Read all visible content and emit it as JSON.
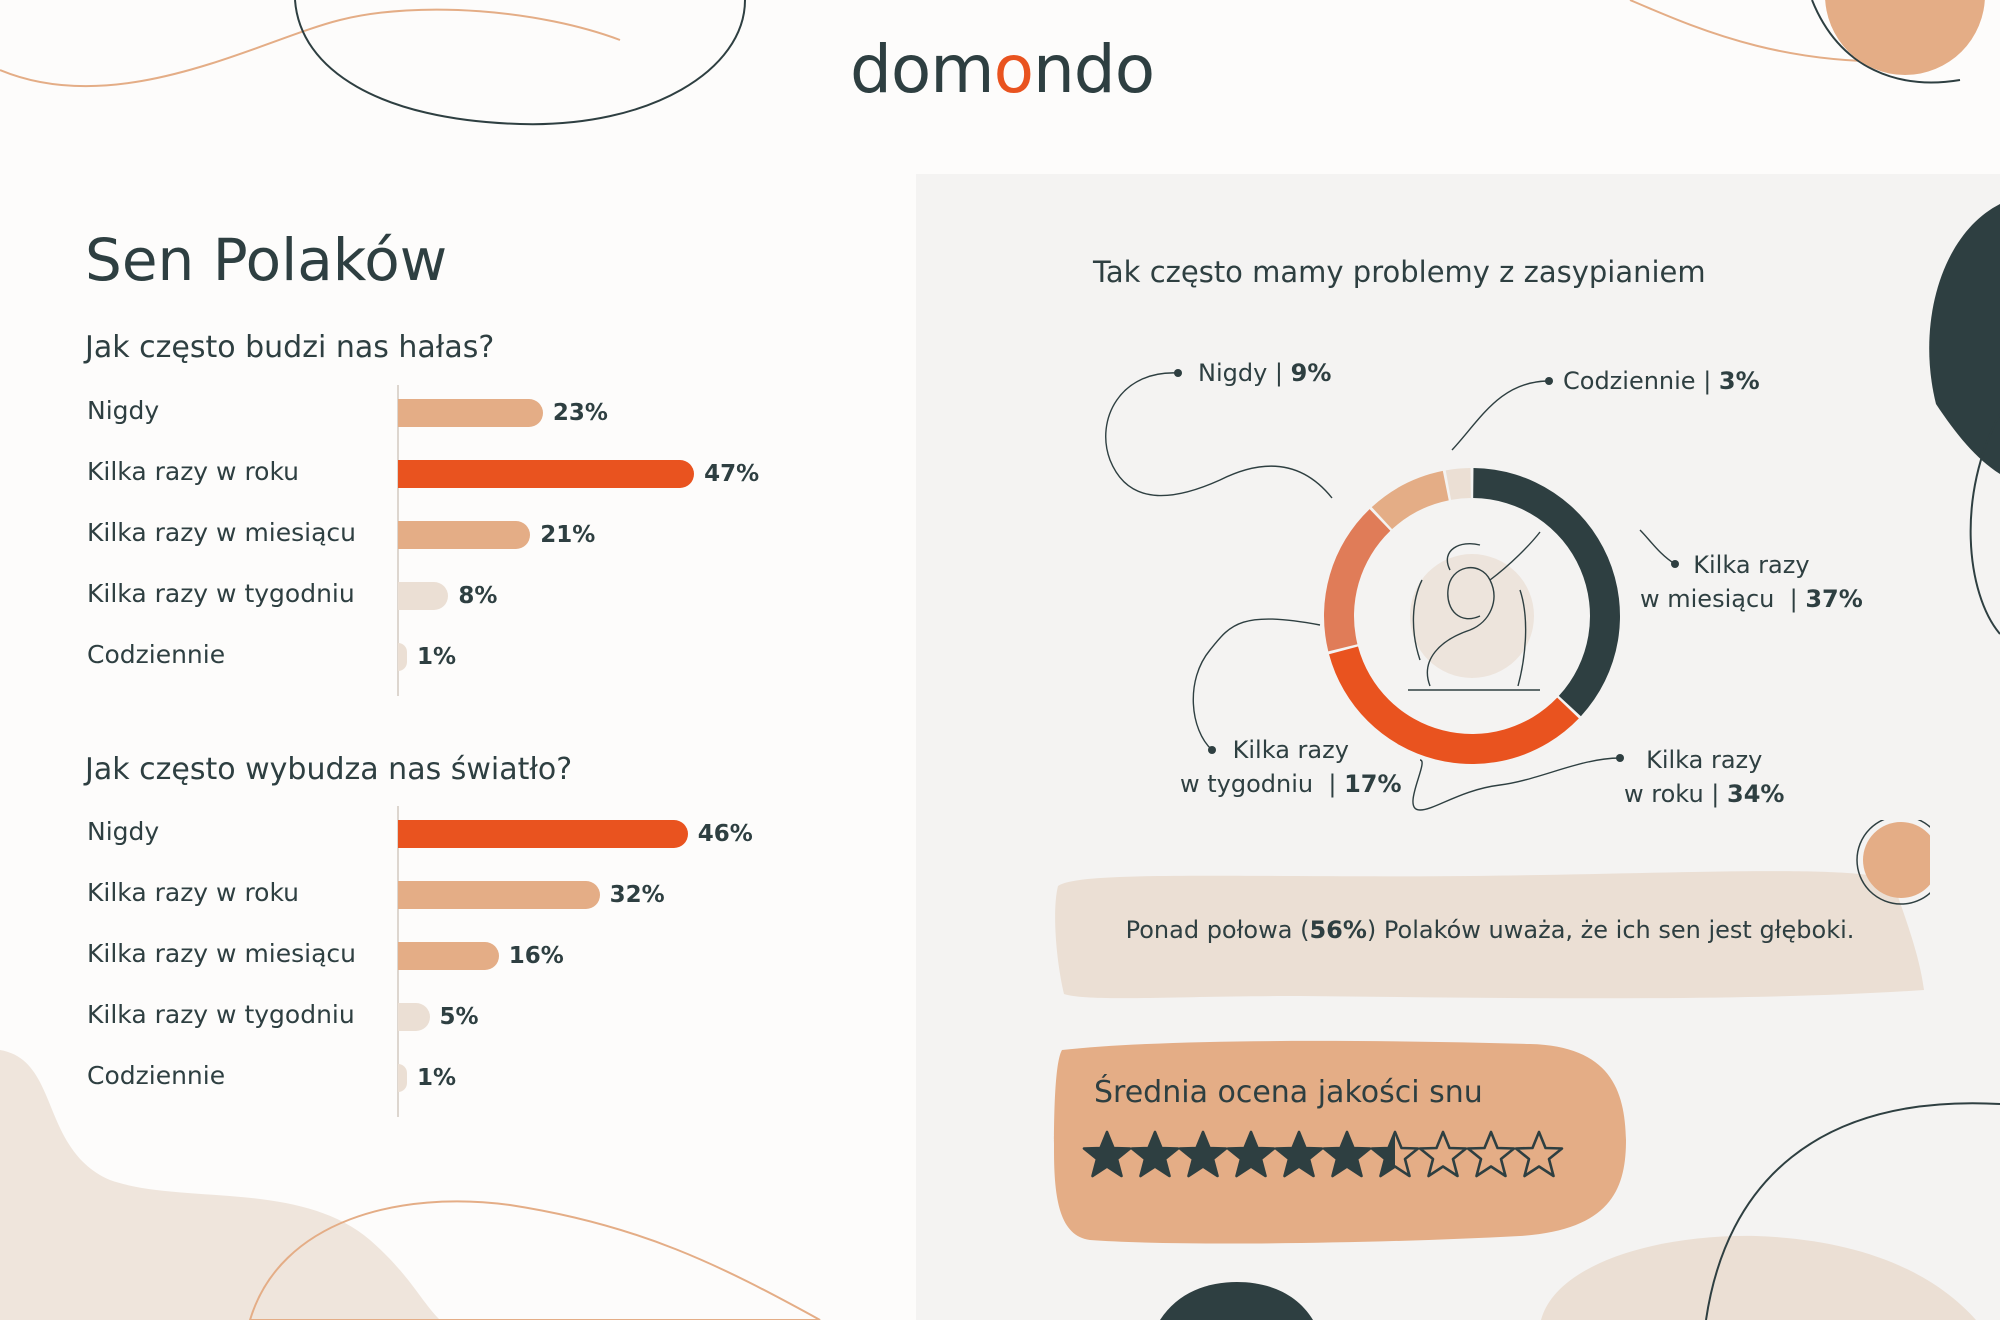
{
  "brand": {
    "logo_prefix": "dom",
    "logo_o": "o",
    "logo_suffix": "ndo"
  },
  "title": "Sen Polaków",
  "colors": {
    "dark": "#2e3f41",
    "orange": "#e9531f",
    "peach": "#e4ad86",
    "beige": "#ebdfd4",
    "salmon": "#e07c58",
    "panel": "#f4f3f2"
  },
  "chart_data": [
    {
      "type": "bar",
      "orientation": "horizontal",
      "title": "Jak często budzi nas hałas?",
      "categories": [
        "Nigdy",
        "Kilka razy w roku",
        "Kilka razy w miesiącu",
        "Kilka razy w tygodniu",
        "Codziennie"
      ],
      "values": [
        23,
        47,
        21,
        8,
        1
      ],
      "value_labels": [
        "23%",
        "47%",
        "21%",
        "8%",
        "1%"
      ],
      "unit": "%",
      "bar_colors": [
        "#e4ad86",
        "#e9531f",
        "#e4ad86",
        "#ebdfd4",
        "#ebdfd4"
      ]
    },
    {
      "type": "bar",
      "orientation": "horizontal",
      "title": "Jak często wybudza nas światło?",
      "categories": [
        "Nigdy",
        "Kilka razy w roku",
        "Kilka razy w miesiącu",
        "Kilka razy w tygodniu",
        "Codziennie"
      ],
      "values": [
        46,
        32,
        16,
        5,
        1
      ],
      "value_labels": [
        "46%",
        "32%",
        "16%",
        "5%",
        "1%"
      ],
      "unit": "%",
      "bar_colors": [
        "#e9531f",
        "#e4ad86",
        "#e4ad86",
        "#ebdfd4",
        "#ebdfd4"
      ]
    },
    {
      "type": "pie",
      "donut": true,
      "title": "Tak często mamy problemy z zasypianiem",
      "slices": [
        {
          "label_lines": [
            "Kilka razy",
            "w miesiącu"
          ],
          "value": 37,
          "value_label": "37%",
          "color": "#2e3f41"
        },
        {
          "label_lines": [
            "Kilka razy",
            "w roku"
          ],
          "value": 34,
          "value_label": "34%",
          "color": "#e9531f"
        },
        {
          "label_lines": [
            "Kilka razy",
            "w tygodniu"
          ],
          "value": 17,
          "value_label": "17%",
          "color": "#e07c58"
        },
        {
          "label_lines": [
            "Nigdy"
          ],
          "value": 9,
          "value_label": "9%",
          "color": "#e4ad86"
        },
        {
          "label_lines": [
            "Codziennie"
          ],
          "value": 3,
          "value_label": "3%",
          "color": "#ebdfd4"
        }
      ]
    }
  ],
  "note": {
    "before": "Ponad połowa (",
    "highlight": "56%",
    "after": ") Polaków uważa, że ich sen jest głęboki."
  },
  "rating": {
    "title": "Średnia ocena jakości snu",
    "value": 6.5,
    "max": 10,
    "star_color": "#2e3f41"
  }
}
